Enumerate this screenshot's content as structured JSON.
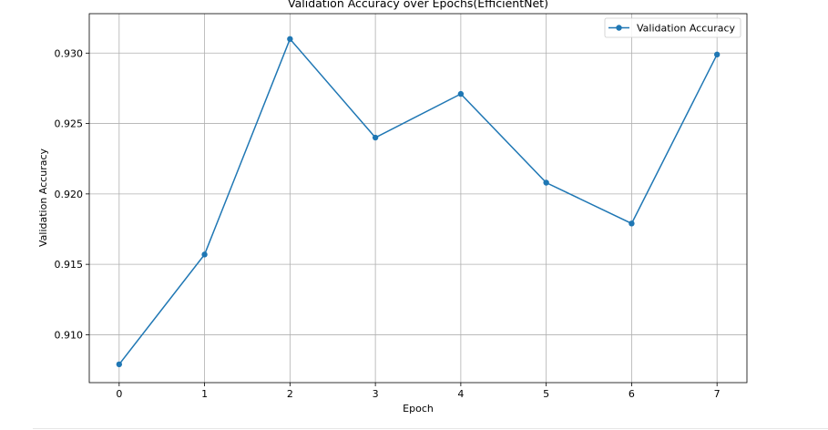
{
  "chart_data": {
    "type": "line",
    "title": "Validation Accuracy over Epochs(EfficientNet)",
    "xlabel": "Epoch",
    "ylabel": "Validation Accuracy",
    "x": [
      0,
      1,
      2,
      3,
      4,
      5,
      6,
      7
    ],
    "xticks": [
      "0",
      "1",
      "2",
      "3",
      "4",
      "5",
      "6",
      "7"
    ],
    "yticks": [
      "0.910",
      "0.915",
      "0.920",
      "0.925",
      "0.930"
    ],
    "xlim": [
      -0.35,
      7.35
    ],
    "ylim": [
      0.9066,
      0.9328
    ],
    "grid": true,
    "legend_position": "top-right",
    "series": [
      {
        "name": "Validation Accuracy",
        "color": "#1f77b4",
        "marker": "circle",
        "values": [
          0.9079,
          0.9157,
          0.931,
          0.924,
          0.9271,
          0.9208,
          0.9179,
          0.9299
        ]
      }
    ]
  }
}
